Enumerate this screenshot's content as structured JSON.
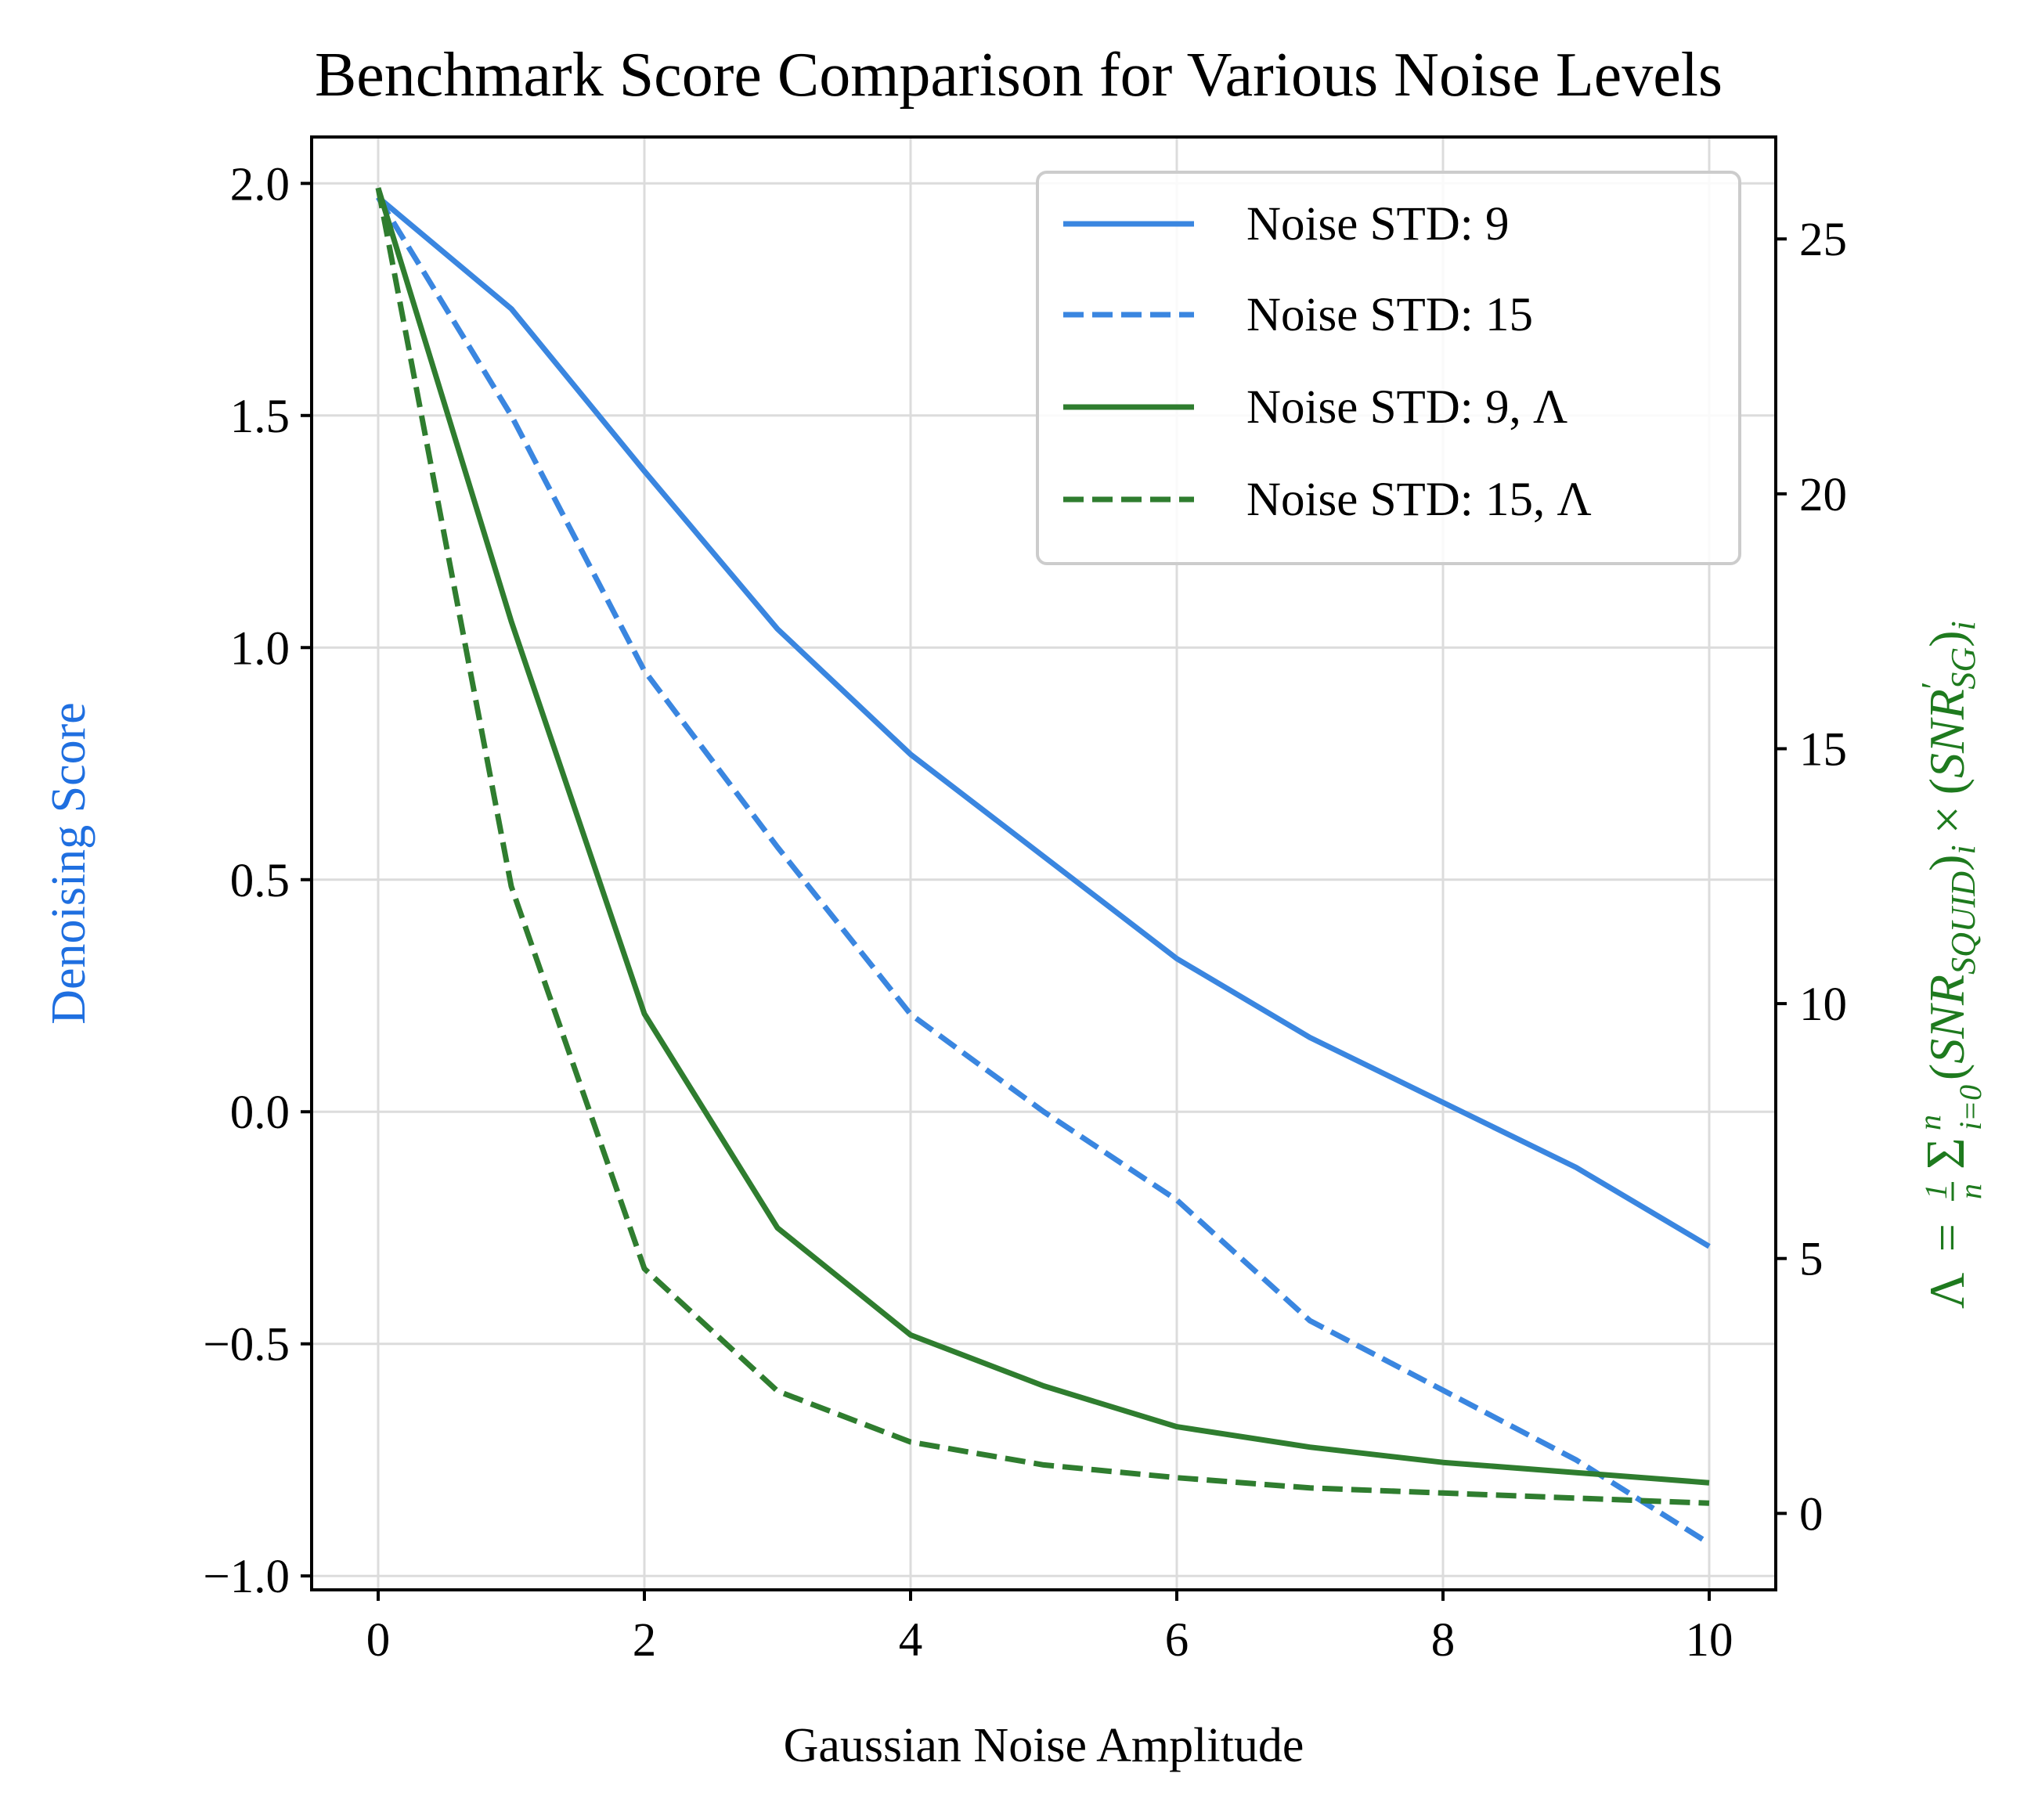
{
  "colors": {
    "blue": "#3a86e0",
    "green": "#2f7d2f",
    "left_axis_label": "#1f6fe0",
    "right_axis_label": "#1e7a1e",
    "grid": "#dcdcdc",
    "axis": "#000000"
  },
  "chart_data": {
    "type": "line",
    "title": "Benchmark Score Comparison for Various Noise Levels",
    "xlabel": "Gaussian Noise Amplitude",
    "ylabel_left": "Denoising Score",
    "ylabel_right": "Λ = (1/n) Σ_{i=0}^{n} (SNR_SQUID)_i × (SNR'_SG)_i",
    "ylabel_right_parts": {
      "lambda": "Λ",
      "equals": "=",
      "frac_num": "1",
      "frac_den": "n",
      "sum": "Σ",
      "sum_sub": "i=0",
      "sum_sup": "n",
      "snr1": "SNR",
      "snr1_sub": "SQUID",
      "idx1": "i",
      "times": "×",
      "snr2": "SNR",
      "prime": "′",
      "snr2_sub": "SG",
      "idx2": "i",
      "lparen": "(",
      "rparen": ")"
    },
    "grid": true,
    "legend_position": "top-right",
    "x": [
      0,
      1,
      2,
      3,
      4,
      5,
      6,
      7,
      8,
      9,
      10
    ],
    "xlim": [
      -0.5,
      10.5
    ],
    "ylim_left": [
      -1.03,
      2.1
    ],
    "ylim_right": [
      -1.5,
      27.0
    ],
    "x_ticks": [
      0,
      2,
      4,
      6,
      8,
      10
    ],
    "x_tick_labels": [
      "0",
      "2",
      "4",
      "6",
      "8",
      "10"
    ],
    "y_left_ticks": [
      -1.0,
      -0.5,
      0.0,
      0.5,
      1.0,
      1.5,
      2.0
    ],
    "y_left_tick_labels": [
      "−1.0",
      "−0.5",
      "0.0",
      "0.5",
      "1.0",
      "1.5",
      "2.0"
    ],
    "y_right_ticks": [
      0,
      5,
      10,
      15,
      20,
      25
    ],
    "y_right_tick_labels": [
      "0",
      "5",
      "10",
      "15",
      "20",
      "25"
    ],
    "series": [
      {
        "name": "Noise STD: 9",
        "axis": "left",
        "style": "solid",
        "color": "#3a86e0",
        "values": [
          1.97,
          1.73,
          1.38,
          1.04,
          0.77,
          0.55,
          0.33,
          0.16,
          0.02,
          -0.12,
          -0.29
        ]
      },
      {
        "name": "Noise STD: 15",
        "axis": "left",
        "style": "dashed",
        "color": "#3a86e0",
        "values": [
          1.97,
          1.5,
          0.95,
          0.57,
          0.21,
          0.0,
          -0.19,
          -0.45,
          -0.6,
          -0.75,
          -0.93
        ]
      },
      {
        "name": "Noise STD: 9, Λ",
        "axis": "right",
        "style": "solid",
        "color": "#2f7d2f",
        "values": [
          26.0,
          17.5,
          9.8,
          5.6,
          3.5,
          2.5,
          1.7,
          1.3,
          1.0,
          0.8,
          0.6
        ]
      },
      {
        "name": "Noise STD: 15, Λ",
        "axis": "right",
        "style": "dashed",
        "color": "#2f7d2f",
        "values": [
          26.0,
          12.3,
          4.8,
          2.4,
          1.4,
          0.95,
          0.7,
          0.5,
          0.4,
          0.3,
          0.2
        ]
      }
    ]
  }
}
